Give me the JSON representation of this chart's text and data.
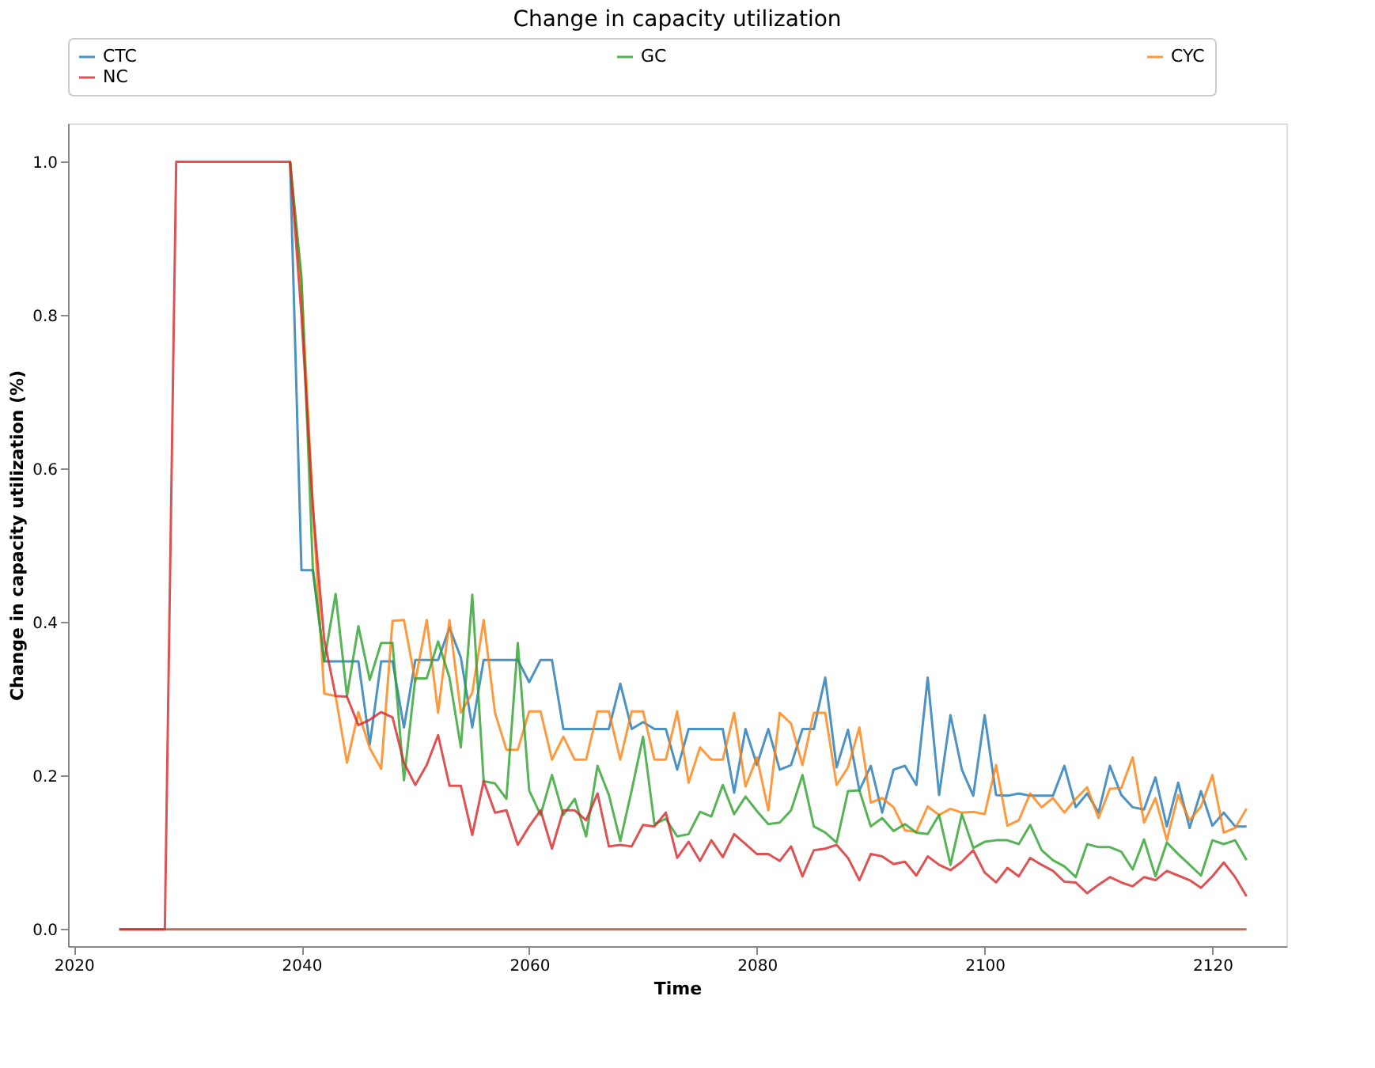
{
  "chart_data": {
    "type": "line",
    "title": "Change in capacity utilization",
    "xlabel": "Time",
    "ylabel": "Change in capacity utilization (%)",
    "x": [
      2024,
      2025,
      2026,
      2027,
      2028,
      2029,
      2030,
      2031,
      2032,
      2033,
      2034,
      2035,
      2036,
      2037,
      2038,
      2039,
      2040,
      2041,
      2042,
      2043,
      2044,
      2045,
      2046,
      2047,
      2048,
      2049,
      2050,
      2051,
      2052,
      2053,
      2054,
      2055,
      2056,
      2057,
      2058,
      2059,
      2060,
      2061,
      2062,
      2063,
      2064,
      2065,
      2066,
      2067,
      2068,
      2069,
      2070,
      2071,
      2072,
      2073,
      2074,
      2075,
      2076,
      2077,
      2078,
      2079,
      2080,
      2081,
      2082,
      2083,
      2084,
      2085,
      2086,
      2087,
      2088,
      2089,
      2090,
      2091,
      2092,
      2093,
      2094,
      2095,
      2096,
      2097,
      2098,
      2099,
      2100,
      2101,
      2102,
      2103,
      2104,
      2105,
      2106,
      2107,
      2108,
      2109,
      2110,
      2111,
      2112,
      2113,
      2114,
      2115,
      2116,
      2117,
      2118,
      2119,
      2120,
      2121,
      2122,
      2123
    ],
    "series": [
      {
        "name": "CTC",
        "color": "#1f77b4",
        "values": [
          null,
          null,
          null,
          null,
          null,
          null,
          null,
          null,
          null,
          null,
          null,
          null,
          null,
          null,
          null,
          1,
          0.468,
          0.468,
          0.349,
          0.349,
          0.349,
          0.349,
          0.241,
          0.349,
          0.349,
          0.263,
          0.351,
          0.351,
          0.351,
          0.393,
          0.354,
          0.263,
          0.351,
          0.351,
          0.351,
          0.351,
          0.322,
          0.351,
          0.351,
          0.261,
          0.261,
          0.261,
          0.261,
          0.261,
          0.32,
          0.261,
          0.27,
          0.261,
          0.261,
          0.208,
          0.261,
          0.261,
          0.261,
          0.261,
          0.178,
          0.261,
          0.214,
          0.261,
          0.208,
          0.214,
          0.261,
          0.261,
          0.328,
          0.211,
          0.26,
          0.181,
          0.213,
          0.152,
          0.208,
          0.213,
          0.188,
          0.328,
          0.175,
          0.279,
          0.208,
          0.174,
          0.279,
          0.175,
          0.174,
          0.177,
          0.174,
          0.174,
          0.174,
          0.213,
          0.159,
          0.177,
          0.152,
          0.213,
          0.175,
          0.159,
          0.156,
          0.198,
          0.134,
          0.191,
          0.132,
          0.18,
          0.135,
          0.152,
          0.134,
          0.134
        ]
      },
      {
        "name": "CYC",
        "color": "#ff7f0e",
        "values": [
          null,
          null,
          null,
          null,
          null,
          null,
          null,
          null,
          null,
          null,
          null,
          null,
          null,
          null,
          null,
          1,
          0.84,
          0.55,
          0.307,
          0.304,
          0.217,
          0.283,
          0.236,
          0.209,
          0.402,
          0.403,
          0.323,
          0.403,
          0.282,
          0.403,
          0.282,
          0.308,
          0.403,
          0.282,
          0.234,
          0.234,
          0.284,
          0.284,
          0.221,
          0.251,
          0.221,
          0.221,
          0.284,
          0.284,
          0.221,
          0.284,
          0.284,
          0.221,
          0.221,
          0.284,
          0.191,
          0.237,
          0.221,
          0.221,
          0.282,
          0.186,
          0.224,
          0.155,
          0.282,
          0.268,
          0.214,
          0.282,
          0.282,
          0.188,
          0.211,
          0.263,
          0.165,
          0.171,
          0.159,
          0.129,
          0.127,
          0.16,
          0.149,
          0.157,
          0.152,
          0.153,
          0.15,
          0.214,
          0.135,
          0.142,
          0.177,
          0.159,
          0.171,
          0.152,
          0.17,
          0.185,
          0.145,
          0.183,
          0.184,
          0.224,
          0.139,
          0.171,
          0.116,
          0.175,
          0.142,
          0.16,
          0.201,
          0.126,
          0.132,
          0.157
        ]
      },
      {
        "name": "GC",
        "color": "#2ca02c",
        "values": [
          null,
          null,
          null,
          null,
          null,
          null,
          null,
          null,
          null,
          null,
          null,
          null,
          null,
          null,
          null,
          1,
          0.85,
          0.47,
          0.349,
          0.437,
          0.304,
          0.395,
          0.325,
          0.373,
          0.373,
          0.194,
          0.327,
          0.327,
          0.375,
          0.328,
          0.237,
          0.436,
          0.193,
          0.19,
          0.17,
          0.373,
          0.181,
          0.149,
          0.201,
          0.149,
          0.17,
          0.121,
          0.213,
          0.175,
          0.115,
          0.181,
          0.251,
          0.137,
          0.144,
          0.121,
          0.124,
          0.153,
          0.147,
          0.188,
          0.15,
          0.173,
          0.154,
          0.137,
          0.139,
          0.155,
          0.201,
          0.134,
          0.126,
          0.113,
          0.18,
          0.181,
          0.134,
          0.145,
          0.128,
          0.137,
          0.126,
          0.124,
          0.149,
          0.084,
          0.15,
          0.106,
          0.114,
          0.116,
          0.116,
          0.111,
          0.136,
          0.103,
          0.09,
          0.082,
          0.068,
          0.111,
          0.107,
          0.107,
          0.101,
          0.078,
          0.117,
          0.069,
          0.113,
          0.098,
          0.084,
          0.07,
          0.116,
          0.111,
          0.116,
          0.09
        ]
      },
      {
        "name": "NC",
        "color": "#d62728",
        "values": [
          0,
          0,
          0,
          0,
          0,
          1,
          1,
          1,
          1,
          1,
          1,
          1,
          1,
          1,
          1,
          1,
          0.8,
          0.55,
          0.377,
          0.304,
          0.303,
          0.266,
          0.273,
          0.283,
          0.276,
          0.217,
          0.188,
          0.214,
          0.253,
          0.187,
          0.187,
          0.123,
          0.193,
          0.152,
          0.155,
          0.11,
          0.134,
          0.155,
          0.105,
          0.155,
          0.155,
          0.142,
          0.177,
          0.108,
          0.11,
          0.108,
          0.136,
          0.134,
          0.152,
          0.093,
          0.114,
          0.089,
          0.116,
          0.094,
          0.124,
          0.111,
          0.098,
          0.098,
          0.089,
          0.108,
          0.069,
          0.103,
          0.105,
          0.11,
          0.093,
          0.064,
          0.098,
          0.095,
          0.085,
          0.088,
          0.07,
          0.095,
          0.084,
          0.077,
          0.088,
          0.103,
          0.074,
          0.061,
          0.08,
          0.069,
          0.093,
          0.084,
          0.076,
          0.062,
          0.061,
          0.047,
          0.058,
          0.068,
          0.061,
          0.056,
          0.068,
          0.064,
          0.076,
          0.07,
          0.064,
          0.054,
          0.069,
          0.087,
          0.068,
          0.043
        ]
      },
      {
        "color": "#a84a2c",
        "values": [
          0,
          0,
          0,
          0,
          0,
          0,
          0,
          0,
          0,
          0,
          0,
          0,
          0,
          0,
          0,
          0,
          0,
          0,
          0,
          0,
          0,
          0,
          0,
          0,
          0,
          0,
          0,
          0,
          0,
          0,
          0,
          0,
          0,
          0,
          0,
          0,
          0,
          0,
          0,
          0,
          0,
          0,
          0,
          0,
          0,
          0,
          0,
          0,
          0,
          0,
          0,
          0,
          0,
          0,
          0,
          0,
          0,
          0,
          0,
          0,
          0,
          0,
          0,
          0,
          0,
          0,
          0,
          0,
          0,
          0,
          0,
          0,
          0,
          0,
          0,
          0,
          0,
          0,
          0,
          0,
          0,
          0,
          0,
          0,
          0,
          0,
          0,
          0,
          0,
          0,
          0,
          0,
          0,
          0,
          0,
          0,
          0,
          0,
          0,
          0
        ]
      }
    ],
    "xlim": [
      2019.5,
      2126.5
    ],
    "xticks": [
      2020,
      2040,
      2060,
      2080,
      2100,
      2120
    ],
    "ylim": [
      -0.022,
      1.05
    ],
    "yticks": [
      {
        "value": 0,
        "label": "0.0"
      },
      {
        "value": 0.2,
        "label": "0.2"
      },
      {
        "value": 0.4,
        "label": "0.4"
      },
      {
        "value": 0.6,
        "label": "0.6"
      },
      {
        "value": 0.8,
        "label": "0.8"
      },
      {
        "value": 1,
        "label": "1.0"
      }
    ],
    "legend": "top",
    "grid": false,
    "marker": "none",
    "line_style": "solid"
  }
}
